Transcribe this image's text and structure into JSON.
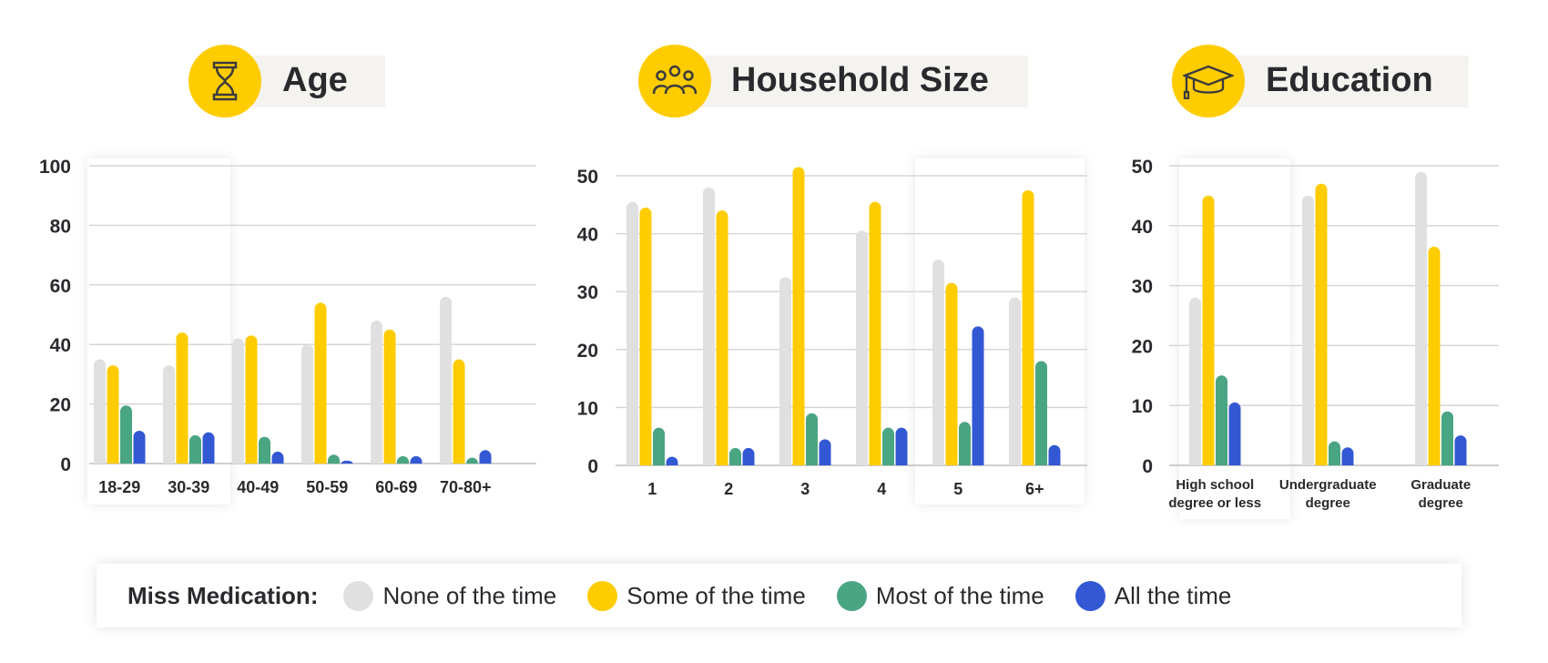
{
  "colors": {
    "none": "#e0e0e0",
    "some": "#ffcc00",
    "most": "#4aa582",
    "all": "#3358d4",
    "header_bg": "#f4f3ef",
    "icon_circle": "#ffcc00"
  },
  "headers": [
    {
      "title": "Age",
      "icon": "hourglass-icon"
    },
    {
      "title": "Household Size",
      "icon": "people-group-icon"
    },
    {
      "title": "Education",
      "icon": "graduation-cap-icon"
    }
  ],
  "legend": {
    "title": "Miss Medication:",
    "items": [
      {
        "label": "None of the time",
        "color": "#e0e0e0"
      },
      {
        "label": "Some of the time",
        "color": "#ffcc00"
      },
      {
        "label": "Most of the time",
        "color": "#4aa582"
      },
      {
        "label": "All the time",
        "color": "#3358d4"
      }
    ]
  },
  "chart_data": [
    {
      "type": "bar",
      "title": "Age",
      "categories": [
        "18-29",
        "30-39",
        "40-49",
        "50-59",
        "60-69",
        "70-80+"
      ],
      "ylim": [
        0,
        100
      ],
      "yticks": [
        0,
        20,
        40,
        60,
        80,
        100
      ],
      "grid": true,
      "highlighted": [
        "18-29",
        "30-39"
      ],
      "series": [
        {
          "name": "None of the time",
          "values": [
            35,
            33,
            42,
            40,
            48,
            56
          ]
        },
        {
          "name": "Some of the time",
          "values": [
            33,
            44,
            43,
            54,
            45,
            35
          ]
        },
        {
          "name": "Most of the time",
          "values": [
            19.5,
            9.5,
            9,
            3,
            2.5,
            2
          ]
        },
        {
          "name": "All the time",
          "values": [
            11,
            10.5,
            4,
            1,
            2.5,
            4.5
          ]
        }
      ]
    },
    {
      "type": "bar",
      "title": "Household Size",
      "categories": [
        "1",
        "2",
        "3",
        "4",
        "5",
        "6+"
      ],
      "ylim": [
        0,
        50
      ],
      "yticks": [
        0,
        10,
        20,
        30,
        40,
        50
      ],
      "grid": true,
      "highlighted": [
        "5",
        "6+"
      ],
      "series": [
        {
          "name": "None of the time",
          "values": [
            45.5,
            48,
            32.5,
            40.5,
            35.5,
            29
          ]
        },
        {
          "name": "Some of the time",
          "values": [
            44.5,
            44,
            51.5,
            45.5,
            31.5,
            47.5
          ]
        },
        {
          "name": "Most of the time",
          "values": [
            6.5,
            3,
            9,
            6.5,
            7.5,
            18
          ]
        },
        {
          "name": "All the time",
          "values": [
            1.5,
            3,
            4.5,
            6.5,
            24,
            3.5
          ]
        }
      ]
    },
    {
      "type": "bar",
      "title": "Education",
      "categories": [
        [
          "High school",
          "degree or less"
        ],
        [
          "Undergraduate",
          "degree"
        ],
        [
          "Graduate",
          "degree"
        ]
      ],
      "ylim": [
        0,
        50
      ],
      "yticks": [
        0,
        10,
        20,
        30,
        40,
        50
      ],
      "grid": true,
      "highlighted": [
        "High school degree or less"
      ],
      "series": [
        {
          "name": "None of the time",
          "values": [
            28,
            45,
            49
          ]
        },
        {
          "name": "Some of the time",
          "values": [
            45,
            47,
            36.5
          ]
        },
        {
          "name": "Most of the time",
          "values": [
            15,
            4,
            9
          ]
        },
        {
          "name": "All the time",
          "values": [
            10.5,
            3,
            5
          ]
        }
      ]
    }
  ]
}
